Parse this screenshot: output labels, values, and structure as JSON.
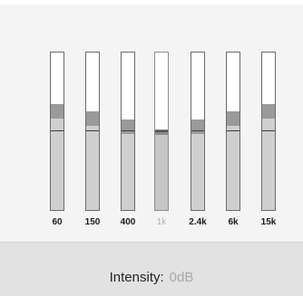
{
  "equalizer": {
    "bands": [
      {
        "label": "60",
        "level": 0.25,
        "enabled": true
      },
      {
        "label": "150",
        "level": 0.15,
        "enabled": true
      },
      {
        "label": "400",
        "level": 0.05,
        "enabled": true
      },
      {
        "label": "1k",
        "level": -0.02,
        "enabled": false
      },
      {
        "label": "2.4k",
        "level": 0.05,
        "enabled": true
      },
      {
        "label": "6k",
        "level": 0.15,
        "enabled": true
      },
      {
        "label": "15k",
        "level": 0.25,
        "enabled": true
      }
    ]
  },
  "intensity": {
    "label": "Intensity:",
    "value": "0dB"
  }
}
